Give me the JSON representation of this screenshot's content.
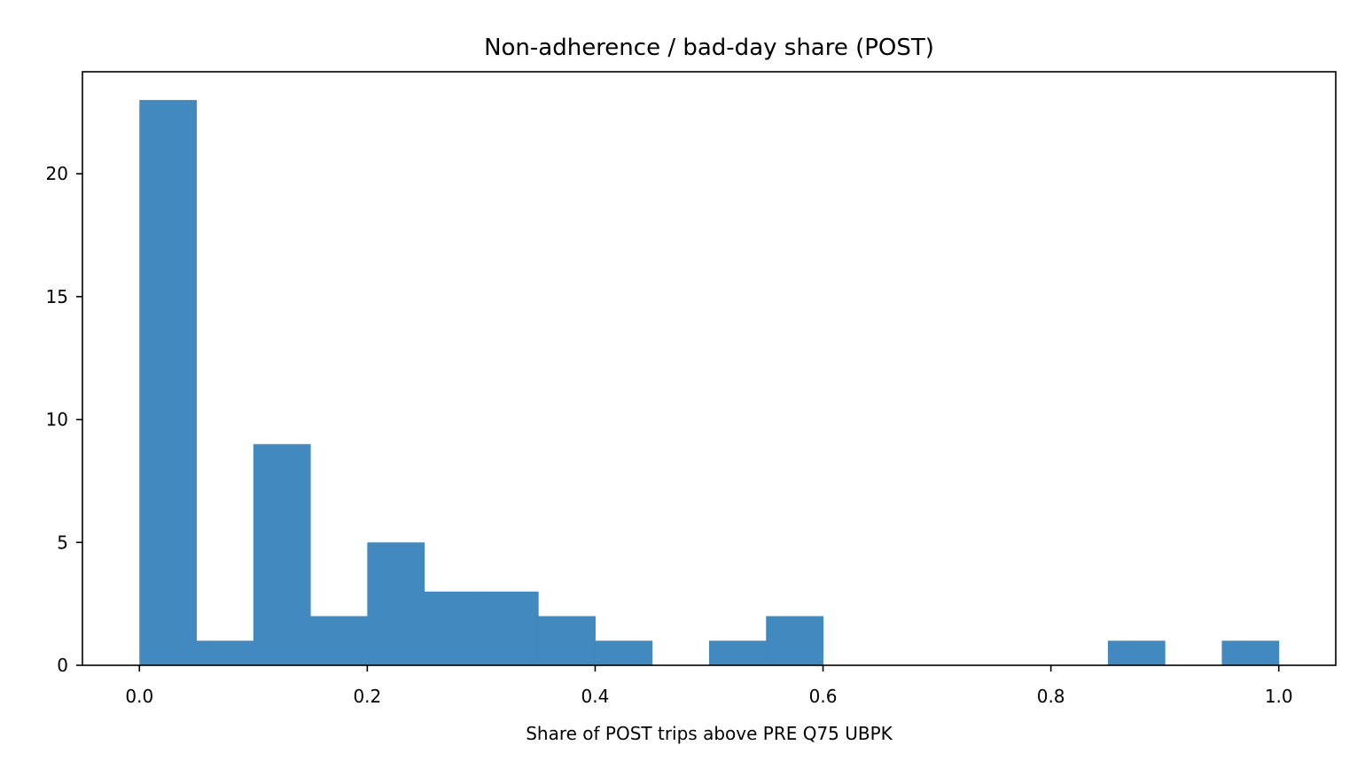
{
  "chart_data": {
    "type": "bar",
    "title": "Non-adherence / bad-day share (POST)",
    "xlabel": "Share of POST trips above PRE Q75 UBPK",
    "ylabel": "",
    "bin_edges": [
      0.0,
      0.05,
      0.1,
      0.15,
      0.2,
      0.25,
      0.3,
      0.35,
      0.4,
      0.45,
      0.5,
      0.55,
      0.6,
      0.65,
      0.7,
      0.75,
      0.8,
      0.85,
      0.9,
      0.95,
      1.0
    ],
    "values": [
      23,
      1,
      9,
      2,
      5,
      3,
      3,
      2,
      1,
      0,
      1,
      2,
      0,
      0,
      0,
      0,
      0,
      1,
      0,
      1
    ],
    "xlim": [
      -0.05,
      1.05
    ],
    "ylim": [
      0,
      24.15
    ],
    "xticks": [
      0.0,
      0.2,
      0.4,
      0.6,
      0.8,
      1.0
    ],
    "xtick_labels": [
      "0.0",
      "0.2",
      "0.4",
      "0.6",
      "0.8",
      "1.0"
    ],
    "yticks": [
      0,
      5,
      10,
      15,
      20
    ],
    "ytick_labels": [
      "0",
      "5",
      "10",
      "15",
      "20"
    ],
    "bar_color": "#4189be",
    "grid": false,
    "legend": "none"
  }
}
